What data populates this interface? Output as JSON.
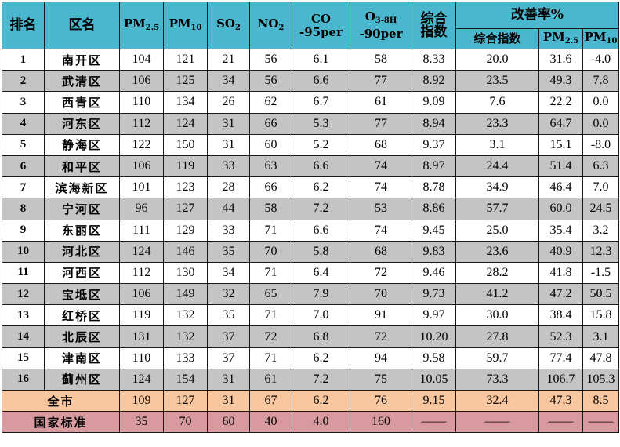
{
  "headers": {
    "rank": "排名",
    "district": "区名",
    "pm25": {
      "main": "PM",
      "sub": "2.5"
    },
    "pm10": {
      "main": "PM",
      "sub": "10"
    },
    "so2": {
      "main": "SO",
      "sub": "2"
    },
    "no2": {
      "main": "NO",
      "sub": "2"
    },
    "co": {
      "line1": "CO",
      "line2": "-95per"
    },
    "o3": {
      "main": "O",
      "sub": "3-8H",
      "line2": "-90per"
    },
    "composite": {
      "line1": "综合",
      "line2": "指数"
    },
    "improvement": "改善率%",
    "imp_composite": "综合指数",
    "imp_pm25": {
      "main": "PM",
      "sub": "2.5"
    },
    "imp_pm10": {
      "main": "PM",
      "sub": "10"
    }
  },
  "rows": [
    {
      "rank": "1",
      "name": "南开区",
      "pm25": "104",
      "pm10": "121",
      "so2": "21",
      "no2": "56",
      "co": "6.1",
      "o3": "58",
      "idx": "8.33",
      "imp_idx": "20.0",
      "imp_pm25": "31.6",
      "imp_pm10": "-4.0"
    },
    {
      "rank": "2",
      "name": "武清区",
      "pm25": "106",
      "pm10": "125",
      "so2": "34",
      "no2": "56",
      "co": "6.6",
      "o3": "77",
      "idx": "8.92",
      "imp_idx": "23.5",
      "imp_pm25": "49.3",
      "imp_pm10": "7.8"
    },
    {
      "rank": "3",
      "name": "西青区",
      "pm25": "110",
      "pm10": "134",
      "so2": "26",
      "no2": "62",
      "co": "6.7",
      "o3": "61",
      "idx": "9.09",
      "imp_idx": "7.6",
      "imp_pm25": "22.2",
      "imp_pm10": "0.0"
    },
    {
      "rank": "4",
      "name": "河东区",
      "pm25": "112",
      "pm10": "124",
      "so2": "31",
      "no2": "66",
      "co": "5.3",
      "o3": "77",
      "idx": "8.94",
      "imp_idx": "23.3",
      "imp_pm25": "64.7",
      "imp_pm10": "0.0"
    },
    {
      "rank": "5",
      "name": "静海区",
      "pm25": "122",
      "pm10": "150",
      "so2": "31",
      "no2": "60",
      "co": "5.2",
      "o3": "68",
      "idx": "9.37",
      "imp_idx": "3.1",
      "imp_pm25": "15.1",
      "imp_pm10": "-8.0"
    },
    {
      "rank": "6",
      "name": "和平区",
      "pm25": "106",
      "pm10": "119",
      "so2": "33",
      "no2": "63",
      "co": "6.6",
      "o3": "74",
      "idx": "8.97",
      "imp_idx": "24.4",
      "imp_pm25": "51.4",
      "imp_pm10": "6.3"
    },
    {
      "rank": "7",
      "name": "滨海新区",
      "pm25": "101",
      "pm10": "123",
      "so2": "28",
      "no2": "66",
      "co": "6.2",
      "o3": "74",
      "idx": "8.78",
      "imp_idx": "34.9",
      "imp_pm25": "46.4",
      "imp_pm10": "7.0"
    },
    {
      "rank": "8",
      "name": "宁河区",
      "pm25": "96",
      "pm10": "127",
      "so2": "44",
      "no2": "58",
      "co": "7.2",
      "o3": "53",
      "idx": "8.86",
      "imp_idx": "57.7",
      "imp_pm25": "60.0",
      "imp_pm10": "24.5"
    },
    {
      "rank": "9",
      "name": "东丽区",
      "pm25": "111",
      "pm10": "129",
      "so2": "33",
      "no2": "71",
      "co": "6.6",
      "o3": "74",
      "idx": "9.45",
      "imp_idx": "25.0",
      "imp_pm25": "35.4",
      "imp_pm10": "3.2"
    },
    {
      "rank": "10",
      "name": "河北区",
      "pm25": "124",
      "pm10": "146",
      "so2": "35",
      "no2": "70",
      "co": "5.8",
      "o3": "68",
      "idx": "9.83",
      "imp_idx": "23.6",
      "imp_pm25": "40.9",
      "imp_pm10": "12.3"
    },
    {
      "rank": "11",
      "name": "河西区",
      "pm25": "112",
      "pm10": "130",
      "so2": "34",
      "no2": "71",
      "co": "6.4",
      "o3": "72",
      "idx": "9.46",
      "imp_idx": "28.2",
      "imp_pm25": "41.8",
      "imp_pm10": "-1.5"
    },
    {
      "rank": "12",
      "name": "宝坻区",
      "pm25": "106",
      "pm10": "149",
      "so2": "32",
      "no2": "65",
      "co": "7.9",
      "o3": "70",
      "idx": "9.73",
      "imp_idx": "41.2",
      "imp_pm25": "47.2",
      "imp_pm10": "50.5"
    },
    {
      "rank": "13",
      "name": "红桥区",
      "pm25": "119",
      "pm10": "132",
      "so2": "35",
      "no2": "71",
      "co": "7.0",
      "o3": "91",
      "idx": "9.97",
      "imp_idx": "30.0",
      "imp_pm25": "38.4",
      "imp_pm10": "15.8"
    },
    {
      "rank": "14",
      "name": "北辰区",
      "pm25": "131",
      "pm10": "132",
      "so2": "37",
      "no2": "72",
      "co": "6.8",
      "o3": "72",
      "idx": "10.20",
      "imp_idx": "27.8",
      "imp_pm25": "52.3",
      "imp_pm10": "3.1"
    },
    {
      "rank": "15",
      "name": "津南区",
      "pm25": "110",
      "pm10": "133",
      "so2": "37",
      "no2": "71",
      "co": "6.2",
      "o3": "94",
      "idx": "9.58",
      "imp_idx": "59.7",
      "imp_pm25": "77.4",
      "imp_pm10": "47.8"
    },
    {
      "rank": "16",
      "name": "蓟州区",
      "pm25": "124",
      "pm10": "154",
      "so2": "31",
      "no2": "61",
      "co": "7.2",
      "o3": "75",
      "idx": "10.05",
      "imp_idx": "73.3",
      "imp_pm25": "106.7",
      "imp_pm10": "105.3"
    }
  ],
  "city": {
    "label": "全市",
    "pm25": "109",
    "pm10": "127",
    "so2": "31",
    "no2": "67",
    "co": "6.2",
    "o3": "76",
    "idx": "9.15",
    "imp_idx": "32.4",
    "imp_pm25": "47.3",
    "imp_pm10": "8.5"
  },
  "standard": {
    "label": "国家标准",
    "pm25": "35",
    "pm10": "70",
    "so2": "60",
    "no2": "40",
    "co": "4.0",
    "o3": "160",
    "idx": "——",
    "imp_idx": "——",
    "imp_pm25": "——",
    "imp_pm10": "——"
  },
  "colors": {
    "header": "#4bb7cf",
    "row_alt": "#c4c4c4",
    "city": "#f9c79f",
    "standard": "#d89a9e"
  }
}
